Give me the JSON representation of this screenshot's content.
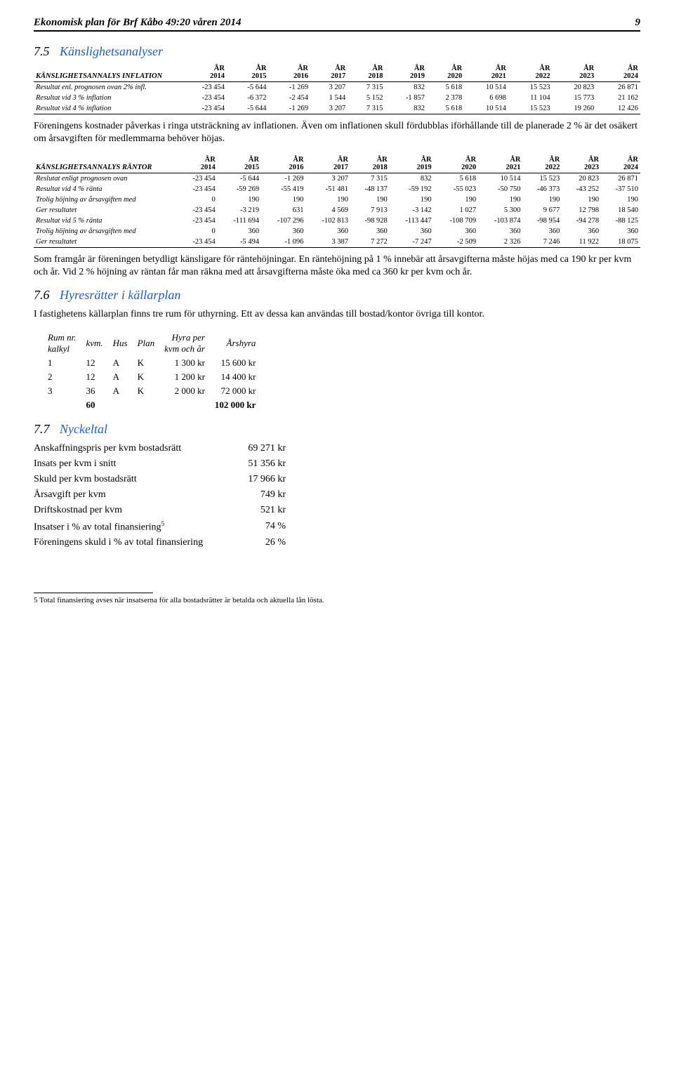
{
  "header": {
    "title": "Ekonomisk plan för Brf Kåbo 49:20 våren 2014",
    "page": "9"
  },
  "section75": {
    "num": "7.5",
    "title": "Känslighetsanalyser",
    "table1": {
      "label": "KÄNSLIGHETSANNALYS INFLATION",
      "years": [
        "ÅR 2014",
        "ÅR 2015",
        "ÅR 2016",
        "ÅR 2017",
        "ÅR 2018",
        "ÅR 2019",
        "ÅR 2020",
        "ÅR 2021",
        "ÅR 2022",
        "ÅR 2023",
        "ÅR 2024"
      ],
      "rows": [
        {
          "label": "Resultat enl. prognosen ovan 2% infl.",
          "vals": [
            "-23 454",
            "-5 644",
            "-1 269",
            "3 207",
            "7 315",
            "832",
            "5 618",
            "10 514",
            "15 523",
            "20 823",
            "26 871"
          ]
        },
        {
          "label": "Resultat vid 3 % inflation",
          "vals": [
            "-23 454",
            "-6 372",
            "-2 454",
            "1 544",
            "5 152",
            "-1 857",
            "2 378",
            "6 698",
            "11 104",
            "15 773",
            "21 162"
          ]
        },
        {
          "label": "Resultat vid 4 % inflation",
          "vals": [
            "-23 454",
            "-5 644",
            "-1 269",
            "3 207",
            "7 315",
            "832",
            "5 618",
            "10 514",
            "15 523",
            "19 260",
            "12 426"
          ]
        }
      ]
    },
    "para1": "Föreningens kostnader påverkas i ringa utsträckning av inflationen. Även om inflationen skull fördubblas iförhållande till de planerade 2 % är det osäkert om årsavgiften för medlemmarna behöver höjas.",
    "table2": {
      "label": "KÄNSLIGHETSANNALYS RÄNTOR",
      "years": [
        "ÅR 2014",
        "ÅR 2015",
        "ÅR 2016",
        "ÅR 2017",
        "ÅR 2018",
        "ÅR 2019",
        "ÅR 2020",
        "ÅR 2021",
        "ÅR 2022",
        "ÅR 2023",
        "ÅR 2024"
      ],
      "rows": [
        {
          "label": "Reslutat enligt prognosen ovan",
          "vals": [
            "-23 454",
            "-5 644",
            "-1 269",
            "3 207",
            "7 315",
            "832",
            "5 618",
            "10 514",
            "15 523",
            "20 823",
            "26 871"
          ]
        },
        {
          "label": "Resultat vid 4 % ränta",
          "vals": [
            "-23 454",
            "-59 269",
            "-55 419",
            "-51 481",
            "-48 137",
            "-59 192",
            "-55 023",
            "-50 750",
            "-46 373",
            "-43 252",
            "-37 510"
          ]
        },
        {
          "label": "Trolig höjning av årsavgiften med",
          "vals": [
            "0",
            "190",
            "190",
            "190",
            "190",
            "190",
            "190",
            "190",
            "190",
            "190",
            "190"
          ]
        },
        {
          "label": "Ger resultatet",
          "vals": [
            "-23 454",
            "-3 219",
            "631",
            "4 569",
            "7 913",
            "-3 142",
            "1 027",
            "5 300",
            "9 677",
            "12 798",
            "18 540"
          ]
        },
        {
          "label": "Resultat vid 5 % ränta",
          "vals": [
            "-23 454",
            "-111 694",
            "-107 296",
            "-102 813",
            "-98 928",
            "-113 447",
            "-108 709",
            "-103 874",
            "-98 954",
            "-94 278",
            "-88 125"
          ]
        },
        {
          "label": "Trolig höjning av årsavgiften med",
          "vals": [
            "0",
            "360",
            "360",
            "360",
            "360",
            "360",
            "360",
            "360",
            "360",
            "360",
            "360"
          ]
        },
        {
          "label": "Ger resultatet",
          "vals": [
            "-23 454",
            "-5 494",
            "-1 096",
            "3 387",
            "7 272",
            "-7 247",
            "-2 509",
            "2 326",
            "7 246",
            "11 922",
            "18 075"
          ]
        }
      ]
    },
    "para2": "Som framgår är föreningen betydligt känsligare för räntehöjningar. En räntehöjning på 1 % innebär att årsavgifterna måste höjas med ca 190 kr per kvm och år. Vid 2 % höjning av räntan får man räkna med att årsavgifterna måste öka med ca 360 kr per kvm och år."
  },
  "section76": {
    "num": "7.6",
    "title": "Hyresrätter i källarplan",
    "para": "I fastighetens källarplan finns tre rum för uthyrning. Ett av dessa kan användas till bostad/kontor övriga till kontor.",
    "roomsHeader": [
      "Rum nr. kalkyl",
      "kvm.",
      "Hus",
      "Plan",
      "Hyra per kvm och år",
      "Årshyra"
    ],
    "rooms": [
      [
        "1",
        "12",
        "A",
        "K",
        "1 300 kr",
        "15 600 kr"
      ],
      [
        "2",
        "12",
        "A",
        "K",
        "1 200 kr",
        "14 400 kr"
      ],
      [
        "3",
        "36",
        "A",
        "K",
        "2 000 kr",
        "72 000 kr"
      ]
    ],
    "roomsTotal": [
      "",
      "60",
      "",
      "",
      "",
      "102 000 kr"
    ]
  },
  "section77": {
    "num": "7.7",
    "title": "Nyckeltal",
    "rows": [
      [
        "Anskaffningspris per kvm bostadsrätt",
        "69 271 kr"
      ],
      [
        "Insats per kvm i snitt",
        "51 356 kr"
      ],
      [
        "Skuld per kvm bostadsrätt",
        "17 966 kr"
      ],
      [
        "Årsavgift per kvm",
        "749 kr"
      ],
      [
        "Driftskostnad per kvm",
        "521 kr"
      ],
      [
        "Insatser i % av total finansiering⁵",
        "74 %"
      ],
      [
        "Föreningens skuld i % av total finansiering",
        "26 %"
      ]
    ]
  },
  "footnote": "5 Total finansiering avses när insatserna för alla bostadsrätter är betalda och aktuella lån lösta."
}
